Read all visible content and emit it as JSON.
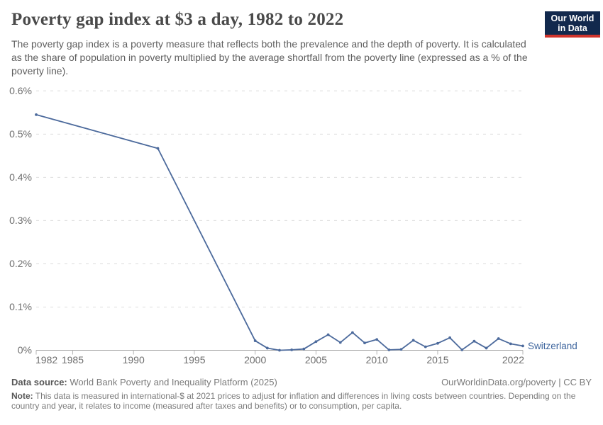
{
  "header": {
    "title": "Poverty gap index at $3 a day, 1982 to 2022",
    "subtitle": "The poverty gap index is a poverty measure that reflects both the prevalence and the depth of poverty. It is calculated as the share of population in poverty multiplied by the average shortfall from the poverty line (expressed as a % of the poverty line).",
    "logo": {
      "line1": "Our World",
      "line2": "in Data",
      "bg_color": "#12294d",
      "accent_color": "#d0342c"
    }
  },
  "chart_data": {
    "type": "line",
    "title": "Poverty gap index at $3 a day, 1982 to 2022",
    "xlabel": "",
    "ylabel": "",
    "xlim": [
      1982,
      2022
    ],
    "ylim": [
      0,
      0.6
    ],
    "grid": "horizontal-dashed",
    "grid_color": "#dcdcdc",
    "axis_color": "#a6a6a6",
    "tick_label_color": "#6e6e6e",
    "legend_position": "end-of-line",
    "y_ticks": [
      {
        "value": 0,
        "label": "0%"
      },
      {
        "value": 0.1,
        "label": "0.1%"
      },
      {
        "value": 0.2,
        "label": "0.2%"
      },
      {
        "value": 0.3,
        "label": "0.3%"
      },
      {
        "value": 0.4,
        "label": "0.4%"
      },
      {
        "value": 0.5,
        "label": "0.5%"
      },
      {
        "value": 0.6,
        "label": "0.6%"
      }
    ],
    "x_ticks": [
      {
        "value": 1982,
        "label": "1982"
      },
      {
        "value": 1985,
        "label": "1985"
      },
      {
        "value": 1990,
        "label": "1990"
      },
      {
        "value": 1995,
        "label": "1995"
      },
      {
        "value": 2000,
        "label": "2000"
      },
      {
        "value": 2005,
        "label": "2005"
      },
      {
        "value": 2010,
        "label": "2010"
      },
      {
        "value": 2015,
        "label": "2015"
      },
      {
        "value": 2022,
        "label": "2022"
      }
    ],
    "series": [
      {
        "name": "Switzerland",
        "color": "#4c6a9c",
        "label_color": "#3d649d",
        "points": [
          [
            1982,
            0.545
          ],
          [
            1992,
            0.467
          ],
          [
            2000,
            0.022
          ],
          [
            2001,
            0.005
          ],
          [
            2002,
            0.0
          ],
          [
            2003,
            0.001
          ],
          [
            2004,
            0.003
          ],
          [
            2005,
            0.02
          ],
          [
            2006,
            0.036
          ],
          [
            2007,
            0.018
          ],
          [
            2008,
            0.041
          ],
          [
            2009,
            0.017
          ],
          [
            2010,
            0.025
          ],
          [
            2011,
            0.001
          ],
          [
            2012,
            0.002
          ],
          [
            2013,
            0.023
          ],
          [
            2014,
            0.008
          ],
          [
            2015,
            0.016
          ],
          [
            2016,
            0.029
          ],
          [
            2017,
            0.001
          ],
          [
            2018,
            0.021
          ],
          [
            2019,
            0.005
          ],
          [
            2020,
            0.027
          ],
          [
            2021,
            0.015
          ],
          [
            2022,
            0.01
          ]
        ]
      }
    ]
  },
  "footer": {
    "datasource_label": "Data source:",
    "datasource_text": "World Bank Poverty and Inequality Platform (2025)",
    "rights": "OurWorldinData.org/poverty | CC BY",
    "note_label": "Note:",
    "note_text": "This data is measured in international-$ at 2021 prices to adjust for inflation and differences in living costs between countries. Depending on the country and year, it relates to income (measured after taxes and benefits) or to consumption, per capita."
  }
}
